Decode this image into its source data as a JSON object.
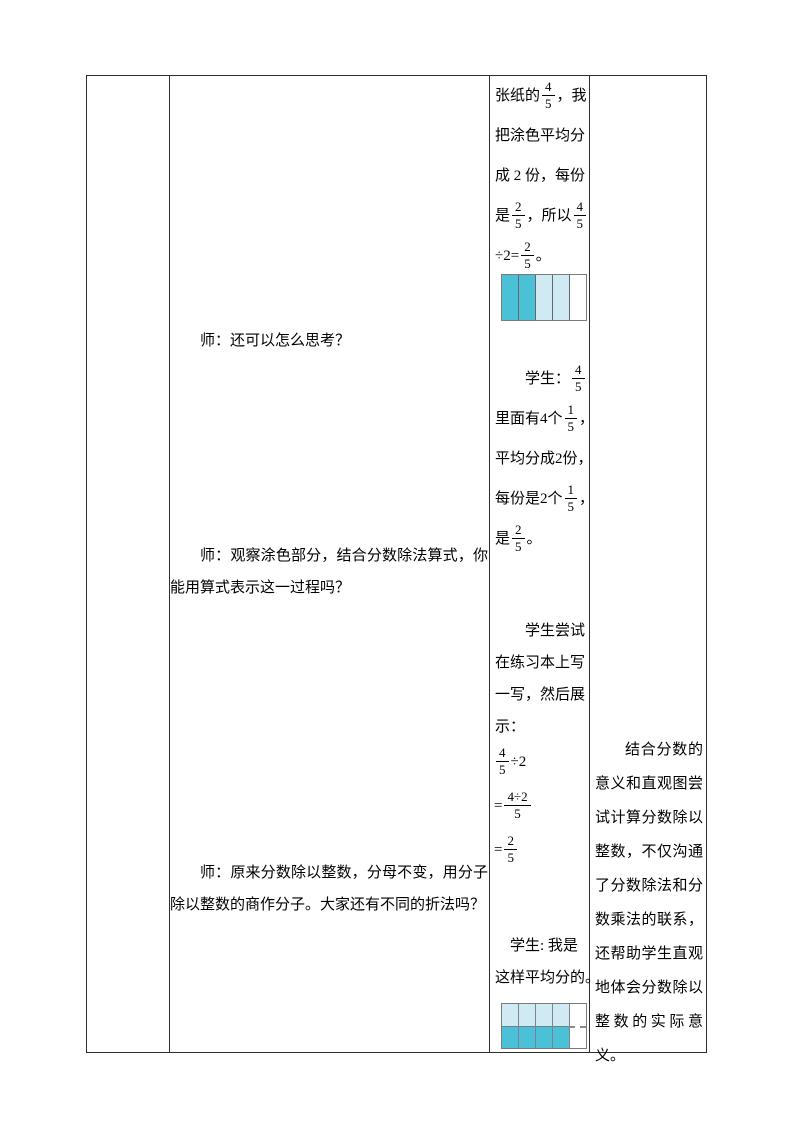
{
  "colors": {
    "teal": "#4bc1d8",
    "light": "#cfeaf2",
    "white": "#ffffff"
  },
  "teacher_column": {
    "p1": "师：还可以怎么思考？",
    "p2": "师：观察涂色部分，结合分数除法算式，你能用算式表示这一过程吗？",
    "p3": "师：原来分数除以整数，分母不变，用分子除以整数的商作分子。大家还有不同的折法吗？"
  },
  "student_column": {
    "continuation_lines": [
      [
        {
          "t": "张纸的"
        },
        {
          "f": [
            "4",
            "5"
          ]
        },
        {
          "t": "，我"
        }
      ],
      [
        {
          "t": "把涂色平均分"
        }
      ],
      [
        {
          "t": "成 2 份，每份"
        }
      ],
      [
        {
          "t": "是"
        },
        {
          "f": [
            "2",
            "5"
          ]
        },
        {
          "t": "，所以"
        },
        {
          "f": [
            "4",
            "5"
          ]
        }
      ],
      [
        {
          "t": "÷2="
        },
        {
          "f": [
            "2",
            "5"
          ]
        },
        {
          "t": "。"
        }
      ]
    ],
    "bar1": {
      "segments": [
        "teal",
        "teal",
        "light",
        "light",
        "white"
      ]
    },
    "reasoning_lines": [
      [
        {
          "t": "　　学生："
        },
        {
          "f": [
            "4",
            "5"
          ]
        }
      ],
      [
        {
          "t": "里面有4个"
        },
        {
          "f": [
            "1",
            "5"
          ]
        },
        {
          "t": "，"
        }
      ],
      [
        {
          "t": "平均分成2份，"
        }
      ],
      [
        {
          "t": "每份是2个"
        },
        {
          "f": [
            "1",
            "5"
          ]
        },
        {
          "t": "，"
        }
      ],
      [
        {
          "t": "是"
        },
        {
          "f": [
            "2",
            "5"
          ]
        },
        {
          "t": "。"
        }
      ]
    ],
    "attempt_lines": [
      [
        {
          "t": "　　学生尝试"
        }
      ],
      [
        {
          "t": "在练习本上写"
        }
      ],
      [
        {
          "t": "一写，然后展"
        }
      ],
      [
        {
          "t": "示："
        }
      ]
    ],
    "math_lines": [
      [
        {
          "f": [
            "4",
            "5"
          ]
        },
        {
          "t": "÷2"
        }
      ],
      [
        {
          "t": "="
        },
        {
          "f": [
            "4÷2",
            "5"
          ]
        }
      ],
      [
        {
          "t": "="
        },
        {
          "f": [
            "2",
            "5"
          ]
        }
      ]
    ],
    "fold_lines": [
      [
        {
          "t": "　学生: 我是"
        }
      ],
      [
        {
          "t": "这样平均分的。"
        }
      ]
    ],
    "bar2": {
      "columns": [
        {
          "top": "light",
          "bottom": "teal"
        },
        {
          "top": "light",
          "bottom": "teal"
        },
        {
          "top": "light",
          "bottom": "teal"
        },
        {
          "top": "light",
          "bottom": "teal"
        },
        {
          "top": "white",
          "bottom": "white",
          "dashed": true
        }
      ]
    }
  },
  "comment_column": {
    "text": "结合分数的意义和直观图尝试计算分数除以整数，不仅沟通了分数除法和分数乘法的联系，还帮助学生直观地体会分数除以整数的实际意义。"
  }
}
